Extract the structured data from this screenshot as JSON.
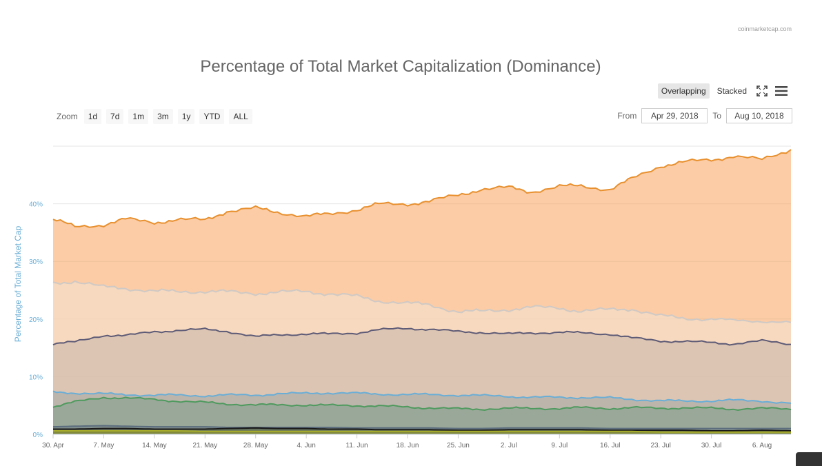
{
  "header": {
    "credit": "coinmarketcap.com",
    "title": "Percentage of Total Market Capitalization (Dominance)"
  },
  "view_toggle": {
    "overlapping_label": "Overlapping",
    "stacked_label": "Stacked",
    "active": "Overlapping",
    "fullscreen_icon": "expand-icon",
    "menu_icon": "hamburger-menu-icon"
  },
  "zoom": {
    "label": "Zoom",
    "buttons": [
      "1d",
      "7d",
      "1m",
      "3m",
      "1y",
      "YTD",
      "ALL"
    ]
  },
  "range": {
    "from_label": "From",
    "from_value": "Apr 29, 2018",
    "to_label": "To",
    "to_value": "Aug 10, 2018"
  },
  "chart_data": {
    "type": "area",
    "ylabel": "Percentage of Total Market Cap",
    "xlabel": "",
    "ylim": [
      0,
      50
    ],
    "yticks": [
      0,
      10,
      20,
      30,
      40
    ],
    "ytick_labels": [
      "0%",
      "10%",
      "20%",
      "30%",
      "40%"
    ],
    "xlim": [
      "2018-04-30",
      "2018-08-10"
    ],
    "xticks": [
      "2018-04-30",
      "2018-05-07",
      "2018-05-14",
      "2018-05-21",
      "2018-05-28",
      "2018-06-04",
      "2018-06-11",
      "2018-06-18",
      "2018-06-25",
      "2018-07-02",
      "2018-07-09",
      "2018-07-16",
      "2018-07-23",
      "2018-07-30",
      "2018-08-06"
    ],
    "xtick_labels": [
      "30. Apr",
      "7. May",
      "14. May",
      "21. May",
      "28. May",
      "4. Jun",
      "11. Jun",
      "18. Jun",
      "25. Jun",
      "2. Jul",
      "9. Jul",
      "16. Jul",
      "23. Jul",
      "30. Jul",
      "6. Aug"
    ],
    "grid": true,
    "legend": "none",
    "x": [
      "2018-04-30",
      "2018-05-03",
      "2018-05-07",
      "2018-05-10",
      "2018-05-14",
      "2018-05-17",
      "2018-05-21",
      "2018-05-24",
      "2018-05-28",
      "2018-05-31",
      "2018-06-04",
      "2018-06-07",
      "2018-06-11",
      "2018-06-14",
      "2018-06-18",
      "2018-06-21",
      "2018-06-25",
      "2018-06-28",
      "2018-07-02",
      "2018-07-05",
      "2018-07-09",
      "2018-07-12",
      "2018-07-16",
      "2018-07-19",
      "2018-07-23",
      "2018-07-26",
      "2018-07-30",
      "2018-08-02",
      "2018-08-06",
      "2018-08-10"
    ],
    "series": [
      {
        "color": "#f7a35c",
        "line_color": "#e8902e",
        "values": [
          37.3,
          36.0,
          36.4,
          37.3,
          36.8,
          37.2,
          37.2,
          38.7,
          39.2,
          38.6,
          37.8,
          38.2,
          39.0,
          39.9,
          40.0,
          40.4,
          41.5,
          42.5,
          42.8,
          42.1,
          43.0,
          43.1,
          42.5,
          44.3,
          46.6,
          47.2,
          47.6,
          48.3,
          47.6,
          49.4
        ]
      },
      {
        "color": "#f2e4d3",
        "line_color": "#cfc9c5",
        "values": [
          26.2,
          26.6,
          25.5,
          25.4,
          24.8,
          24.8,
          24.8,
          24.7,
          24.5,
          24.6,
          24.8,
          24.4,
          23.9,
          23.2,
          22.7,
          22.5,
          21.3,
          21.3,
          21.7,
          22.0,
          21.9,
          21.4,
          21.6,
          21.8,
          20.5,
          20.2,
          20.0,
          19.8,
          19.6,
          19.4
        ]
      },
      {
        "color": "#c7b5a8",
        "line_color": "#5e5b77",
        "values": [
          15.7,
          16.0,
          17.2,
          17.1,
          17.8,
          18.0,
          18.2,
          17.9,
          16.9,
          17.3,
          17.4,
          17.4,
          17.6,
          18.1,
          18.4,
          18.2,
          17.8,
          17.7,
          17.4,
          17.6,
          17.7,
          17.6,
          17.4,
          16.7,
          16.2,
          16.1,
          15.9,
          15.7,
          16.2,
          15.6
        ]
      },
      {
        "color": "#a2a8a8",
        "line_color": "#6aaed6",
        "values": [
          7.3,
          7.2,
          7.0,
          6.9,
          6.8,
          6.8,
          6.7,
          6.8,
          6.8,
          7.0,
          7.1,
          7.2,
          7.1,
          7.0,
          6.9,
          6.9,
          6.8,
          6.7,
          6.6,
          6.4,
          6.4,
          6.4,
          6.3,
          6.1,
          5.8,
          5.8,
          5.8,
          5.9,
          5.8,
          5.4
        ]
      },
      {
        "color": "#7c9c8a",
        "line_color": "#4f9a5e",
        "values": [
          4.8,
          5.6,
          6.4,
          6.3,
          6.0,
          5.8,
          5.5,
          5.3,
          5.1,
          5.1,
          5.1,
          5.0,
          5.0,
          4.9,
          4.7,
          4.6,
          4.4,
          4.4,
          4.5,
          4.5,
          4.5,
          4.6,
          4.5,
          4.6,
          4.5,
          4.6,
          4.5,
          4.4,
          4.5,
          4.3
        ]
      },
      {
        "color": "#6d7c85",
        "line_color": "#5c6d7e",
        "values": [
          1.3,
          1.4,
          1.5,
          1.4,
          1.3,
          1.3,
          1.3,
          1.2,
          1.2,
          1.2,
          1.2,
          1.2,
          1.1,
          1.1,
          1.1,
          1.1,
          1.0,
          1.0,
          1.1,
          1.1,
          1.1,
          1.1,
          1.0,
          1.0,
          1.0,
          1.0,
          1.0,
          1.0,
          1.0,
          1.0
        ]
      },
      {
        "color": "#4e5a36",
        "line_color": "#1a1a1a",
        "values": [
          0.9,
          0.9,
          1.0,
          1.0,
          0.9,
          0.9,
          0.9,
          1.0,
          1.1,
          1.0,
          1.0,
          0.9,
          0.9,
          0.8,
          0.8,
          0.8,
          0.7,
          0.7,
          0.8,
          0.8,
          0.8,
          0.8,
          0.7,
          0.7,
          0.7,
          0.7,
          0.6,
          0.6,
          0.7,
          0.6
        ]
      },
      {
        "color": "#9aa023",
        "line_color": "#a7ad2a",
        "values": [
          0.6,
          0.6,
          0.6,
          0.6,
          0.6,
          0.6,
          0.5,
          0.5,
          0.5,
          0.5,
          0.5,
          0.5,
          0.5,
          0.5,
          0.5,
          0.5,
          0.5,
          0.5,
          0.5,
          0.5,
          0.5,
          0.5,
          0.5,
          0.5,
          0.4,
          0.4,
          0.4,
          0.4,
          0.4,
          0.4
        ]
      }
    ]
  }
}
